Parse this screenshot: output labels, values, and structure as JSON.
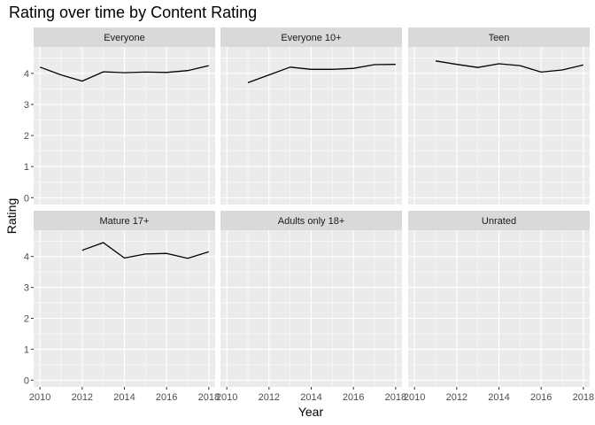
{
  "chart_data": {
    "type": "line",
    "title": "Rating over time by Content Rating",
    "xlabel": "Year",
    "ylabel": "Rating",
    "xlim": [
      2009.7,
      2018.3
    ],
    "ylim": [
      -0.22,
      4.85
    ],
    "x_ticks": [
      2010,
      2012,
      2014,
      2016,
      2018
    ],
    "y_ticks": [
      0,
      1,
      2,
      3,
      4
    ],
    "grid": true,
    "line_color": "#000000",
    "panel_background": "#ebebeb",
    "strip_background": "#d9d9d9",
    "grid_color": "#ffffff",
    "facets": [
      {
        "name": "Everyone",
        "x": [
          2010,
          2011,
          2012,
          2013,
          2014,
          2015,
          2016,
          2017,
          2018
        ],
        "values": [
          4.2,
          3.95,
          3.75,
          4.05,
          4.02,
          4.04,
          4.03,
          4.09,
          4.25
        ]
      },
      {
        "name": "Everyone 10+",
        "x": [
          2011,
          2012,
          2013,
          2014,
          2015,
          2016,
          2017,
          2018
        ],
        "values": [
          3.7,
          3.95,
          4.2,
          4.13,
          4.13,
          4.16,
          4.28,
          4.29
        ]
      },
      {
        "name": "Teen",
        "x": [
          2011,
          2012,
          2013,
          2014,
          2015,
          2016,
          2017,
          2018
        ],
        "values": [
          4.4,
          4.29,
          4.19,
          4.31,
          4.25,
          4.04,
          4.11,
          4.27
        ]
      },
      {
        "name": "Mature 17+",
        "x": [
          2012,
          2013,
          2014,
          2015,
          2016,
          2017,
          2018
        ],
        "values": [
          4.2,
          4.45,
          3.95,
          4.08,
          4.1,
          3.94,
          4.15
        ]
      },
      {
        "name": "Adults only 18+",
        "x": [],
        "values": []
      },
      {
        "name": "Unrated",
        "x": [],
        "values": []
      }
    ]
  }
}
